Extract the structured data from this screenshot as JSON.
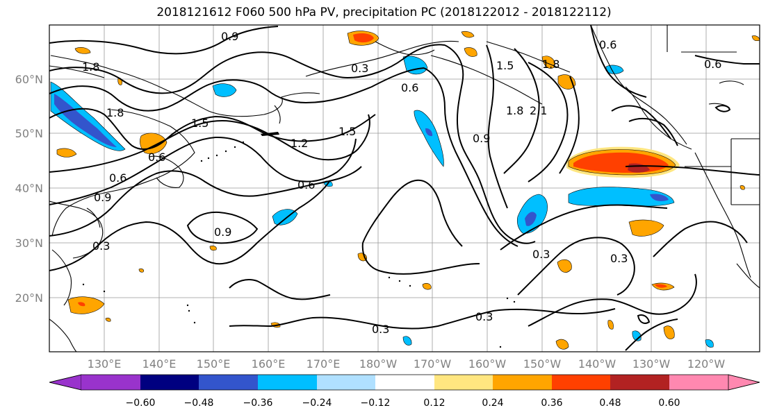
{
  "title": "2018121612 F060 500 hPa PV, precipitation PC (2018122012 - 2018122112)",
  "map": {
    "lat_labels": [
      "60°N",
      "50°N",
      "40°N",
      "30°N",
      "20°N"
    ],
    "lon_labels": [
      "130°E",
      "140°E",
      "150°E",
      "160°E",
      "170°E",
      "180°W",
      "170°W",
      "160°W",
      "150°W",
      "140°W",
      "130°W",
      "120°W"
    ],
    "contour_labels": [
      "0.9",
      "1.8",
      "0.3",
      "0.6",
      "1.5",
      "1.2",
      "1.5",
      "1.8",
      "0.6",
      "0.9",
      "0.6",
      "0.3",
      "0.3",
      "0.6",
      "0.9",
      "0.3",
      "0.3",
      "1.8",
      "2.1",
      "1.5",
      "0.6",
      "0.3",
      "0.9",
      "0.6",
      "1.8"
    ]
  },
  "colorbar": {
    "ticks": [
      "−0.60",
      "−0.48",
      "−0.36",
      "−0.24",
      "−0.12",
      "0.12",
      "0.24",
      "0.36",
      "0.48",
      "0.60"
    ],
    "colors": [
      "#9933cc",
      "#000080",
      "#3355cc",
      "#00bfff",
      "#b0e0ff",
      "#ffffff",
      "#ffe680",
      "#ffa500",
      "#ff4000",
      "#b22222",
      "#ff88b0"
    ]
  },
  "colors": {
    "land_outline": "#000000",
    "grid": "#999999",
    "tick_text": "#808080"
  }
}
